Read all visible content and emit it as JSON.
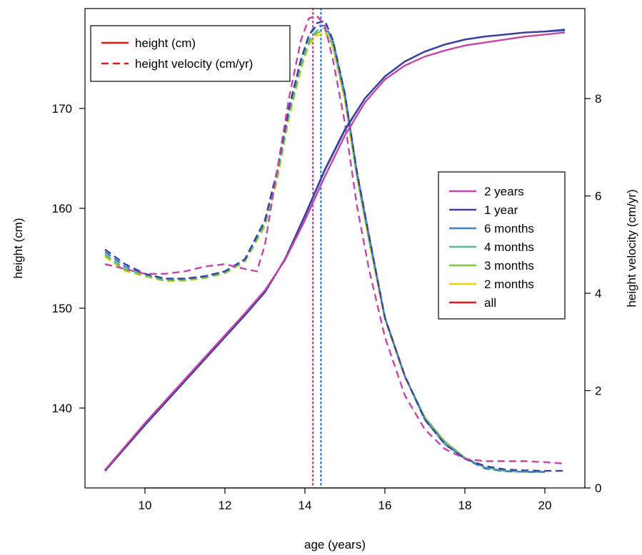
{
  "chart_data": {
    "type": "line",
    "xlabel": "age (years)",
    "ylabel": "height (cm)",
    "y2label": "height velocity (cm/yr)",
    "xlim": [
      8.5,
      21
    ],
    "ylim": [
      132,
      180
    ],
    "y2lim": [
      0,
      9.85
    ],
    "xticks": [
      10,
      12,
      14,
      16,
      18,
      20
    ],
    "yticks": [
      140,
      150,
      160,
      170
    ],
    "y2ticks": [
      0,
      2,
      4,
      6,
      8
    ],
    "grid": false,
    "line_type_legend": {
      "placement": "top-left",
      "items": [
        {
          "label": "height (cm)",
          "dash": "solid",
          "color": "#e41a1c"
        },
        {
          "label": "height velocity (cm/yr)",
          "dash": "dashed",
          "color": "#e41a1c"
        }
      ]
    },
    "series_legend": {
      "placement": "center-right",
      "items": [
        {
          "label": "2 years",
          "color": "#c644a8"
        },
        {
          "label": "1 year",
          "color": "#3b3fa0"
        },
        {
          "label": "6 months",
          "color": "#3c7fc4"
        },
        {
          "label": "4 months",
          "color": "#5dbb8a"
        },
        {
          "label": "3 months",
          "color": "#7cc544"
        },
        {
          "label": "2 months",
          "color": "#f0d010"
        },
        {
          "label": "all",
          "color": "#e41a1c"
        }
      ]
    },
    "peak_velocity_age_lines": [
      {
        "x": 14.2,
        "color": "#c644a8"
      },
      {
        "x": 14.4,
        "color": "#3c7fc4"
      }
    ],
    "height_series": [
      {
        "name": "2 years",
        "color": "#c644a8",
        "x": [
          9,
          10,
          11,
          12,
          12.5,
          13,
          13.5,
          14,
          14.5,
          15,
          15.5,
          16,
          16.5,
          17,
          17.5,
          18,
          18.5,
          19,
          19.5,
          20,
          20.5
        ],
        "y": [
          133.8,
          138.5,
          142.9,
          147.3,
          149.5,
          151.8,
          154.8,
          158.8,
          163.2,
          167.3,
          170.6,
          172.9,
          174.3,
          175.2,
          175.8,
          176.3,
          176.6,
          176.9,
          177.2,
          177.4,
          177.6
        ]
      },
      {
        "name": "1 year",
        "color": "#3b3fa0",
        "x": [
          9,
          10,
          11,
          12,
          12.5,
          13,
          13.5,
          14,
          14.5,
          15,
          15.5,
          16,
          16.5,
          17,
          17.5,
          18,
          18.5,
          19,
          19.5,
          20,
          20.5
        ],
        "y": [
          133.7,
          138.3,
          142.7,
          147.1,
          149.3,
          151.6,
          154.9,
          159.3,
          163.9,
          167.9,
          171.0,
          173.2,
          174.7,
          175.7,
          176.4,
          176.9,
          177.2,
          177.4,
          177.6,
          177.7,
          177.9
        ]
      },
      {
        "name": "6 months",
        "color": "#3c7fc4",
        "x": [
          9,
          10,
          11,
          12,
          12.5,
          13,
          13.5,
          14,
          14.5,
          15,
          15.5,
          16,
          16.5,
          17,
          17.5,
          18,
          18.5,
          19,
          19.5,
          20,
          20.5
        ],
        "y": [
          133.7,
          138.3,
          142.7,
          147.1,
          149.3,
          151.6,
          154.9,
          159.2,
          163.8,
          167.8,
          171.0,
          173.2,
          174.7,
          175.7,
          176.4,
          176.9,
          177.2,
          177.4,
          177.6,
          177.7,
          177.8
        ]
      }
    ],
    "velocity_series": [
      {
        "name": "2 years",
        "color": "#c644a8",
        "x": [
          9,
          9.5,
          10,
          10.5,
          11,
          11.5,
          12,
          12.5,
          12.8,
          13,
          13.3,
          13.6,
          13.9,
          14.1,
          14.3,
          14.5,
          14.7,
          15,
          15.3,
          15.6,
          16,
          16.5,
          17,
          17.5,
          18,
          18.5,
          19,
          19.5,
          20,
          20.5
        ],
        "y": [
          4.6,
          4.5,
          4.4,
          4.4,
          4.45,
          4.55,
          4.6,
          4.5,
          4.45,
          5.0,
          6.5,
          8.0,
          9.2,
          9.65,
          9.7,
          9.5,
          8.8,
          7.5,
          5.8,
          4.5,
          3.1,
          1.9,
          1.2,
          0.8,
          0.6,
          0.55,
          0.55,
          0.55,
          0.53,
          0.5
        ]
      },
      {
        "name": "1 year",
        "color": "#3b3fa0",
        "x": [
          9,
          9.5,
          10,
          10.5,
          11,
          11.5,
          12,
          12.5,
          13,
          13.3,
          13.6,
          13.9,
          14.1,
          14.3,
          14.5,
          14.7,
          15,
          15.3,
          15.6,
          16,
          16.5,
          17,
          17.5,
          18,
          18.5,
          19,
          19.5,
          20,
          20.5
        ],
        "y": [
          4.9,
          4.6,
          4.4,
          4.3,
          4.3,
          4.35,
          4.45,
          4.7,
          5.5,
          6.5,
          7.8,
          8.8,
          9.3,
          9.55,
          9.6,
          9.2,
          8.1,
          6.5,
          5.2,
          3.5,
          2.3,
          1.4,
          0.9,
          0.6,
          0.45,
          0.38,
          0.36,
          0.35,
          0.35
        ]
      },
      {
        "name": "6 months",
        "color": "#3c7fc4",
        "x": [
          9,
          9.5,
          10,
          10.5,
          11,
          11.5,
          12,
          12.5,
          13,
          13.3,
          13.6,
          13.9,
          14.1,
          14.3,
          14.5,
          14.7,
          15,
          15.3,
          15.6,
          16,
          16.5,
          17,
          17.5,
          18,
          18.5,
          19,
          19.5,
          20
        ],
        "y": [
          4.85,
          4.55,
          4.4,
          4.3,
          4.3,
          4.35,
          4.45,
          4.7,
          5.5,
          6.5,
          7.8,
          8.8,
          9.3,
          9.5,
          9.5,
          9.2,
          8.1,
          6.5,
          5.2,
          3.5,
          2.3,
          1.4,
          0.9,
          0.6,
          0.4,
          0.34,
          0.33,
          0.33
        ]
      },
      {
        "name": "4 months",
        "color": "#5dbb8a",
        "x": [
          9,
          9.5,
          10,
          10.5,
          11,
          11.5,
          12,
          12.5,
          13,
          13.3,
          13.6,
          13.9,
          14.1,
          14.3,
          14.5,
          14.7,
          15,
          15.3,
          15.6,
          16,
          16.5,
          17,
          17.5,
          18,
          18.5,
          19,
          19.5,
          20
        ],
        "y": [
          4.8,
          4.5,
          4.38,
          4.27,
          4.28,
          4.33,
          4.43,
          4.68,
          5.45,
          6.4,
          7.7,
          8.7,
          9.2,
          9.4,
          9.45,
          9.15,
          8.05,
          6.45,
          5.15,
          3.5,
          2.3,
          1.45,
          0.95,
          0.62,
          0.42,
          0.35,
          0.33,
          0.33
        ]
      },
      {
        "name": "3 months",
        "color": "#7cc544",
        "x": [
          9,
          9.5,
          10,
          10.5,
          11,
          11.5,
          12,
          12.5,
          13,
          13.3,
          13.6,
          13.9,
          14.1,
          14.3,
          14.5,
          14.7,
          15,
          15.3,
          15.6,
          16,
          16.5,
          17,
          17.5,
          18,
          18.5,
          19,
          19.5,
          20
        ],
        "y": [
          4.78,
          4.48,
          4.36,
          4.26,
          4.27,
          4.32,
          4.42,
          4.66,
          5.4,
          6.35,
          7.65,
          8.65,
          9.15,
          9.35,
          9.4,
          9.1,
          8.0,
          6.4,
          5.1,
          3.48,
          2.28,
          1.45,
          0.95,
          0.62,
          0.42,
          0.35,
          0.33,
          0.33
        ]
      },
      {
        "name": "2 months",
        "color": "#f0d010",
        "x": [
          9,
          9.5,
          10,
          10.5,
          11,
          11.5,
          12,
          12.5,
          13,
          13.3,
          13.6,
          13.9,
          14.1,
          14.3,
          14.5,
          14.7,
          15,
          15.3,
          15.6,
          16,
          16.5,
          17,
          17.5,
          18,
          18.5,
          19,
          19.5,
          20
        ],
        "y": [
          4.75,
          4.46,
          4.35,
          4.25,
          4.26,
          4.31,
          4.41,
          4.65,
          5.38,
          6.3,
          7.6,
          8.6,
          9.1,
          9.3,
          9.35,
          9.05,
          7.95,
          6.38,
          5.08,
          3.46,
          2.27,
          1.44,
          0.95,
          0.62,
          0.42,
          0.35,
          0.33,
          0.33
        ]
      }
    ]
  }
}
